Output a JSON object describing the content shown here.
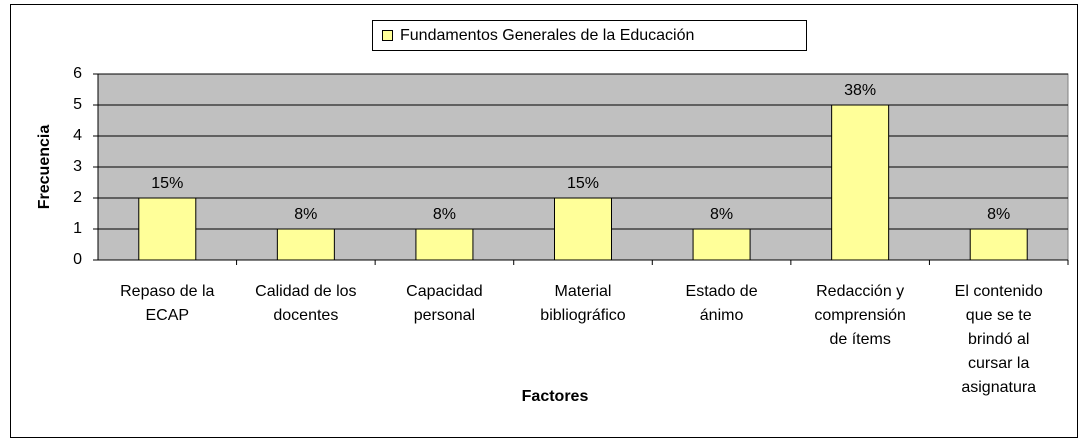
{
  "chart_data": {
    "type": "bar",
    "legend": "Fundamentos Generales de la Educación",
    "y_label": "Frecuencia",
    "x_label": "Factores",
    "categories": [
      "Repaso de la ECAP",
      "Calidad de los docentes",
      "Capacidad personal",
      "Material bibliográfico",
      "Estado de ánimo",
      "Redacción y comprensión de ítems",
      "El contenido que se te brindó al cursar la asignatura"
    ],
    "values": [
      2,
      1,
      1,
      2,
      1,
      5,
      1
    ],
    "data_labels": [
      "15%",
      "8%",
      "8%",
      "15%",
      "8%",
      "38%",
      "8%"
    ],
    "color": "#ffff99",
    "plot_background": "#c0c0c0",
    "ylim": [
      0,
      6
    ],
    "yticks": [
      0,
      1,
      2,
      3,
      4,
      5,
      6
    ],
    "grid": true
  }
}
